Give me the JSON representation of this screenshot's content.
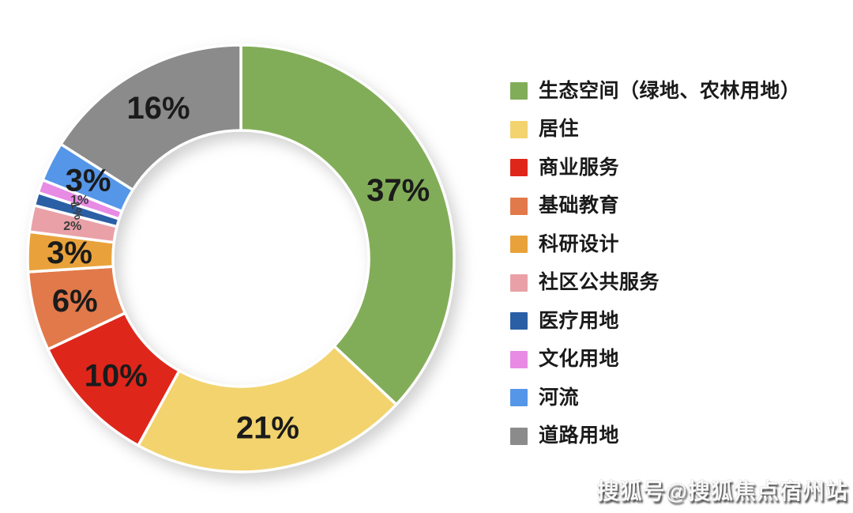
{
  "chart_data": {
    "type": "pie",
    "subtype": "donut",
    "title": "",
    "legend_position": "right",
    "direction": "clockwise",
    "start_angle_deg": 0,
    "donut_inner_ratio": 0.6,
    "series": [
      {
        "label": "生态空间（绿地、农林用地）",
        "value": 37,
        "pct_label": "37%",
        "color": "#82AD58",
        "label_rotate": 0
      },
      {
        "label": "居住",
        "value": 21,
        "pct_label": "21%",
        "color": "#F2D36E",
        "label_rotate": 0
      },
      {
        "label": "商业服务",
        "value": 10,
        "pct_label": "10%",
        "color": "#DF261A",
        "label_rotate": 0
      },
      {
        "label": "基础教育",
        "value": 6,
        "pct_label": "6%",
        "color": "#E2794A",
        "label_rotate": 0
      },
      {
        "label": "科研设计",
        "value": 3,
        "pct_label": "3%",
        "color": "#E9A23B",
        "label_rotate": 0
      },
      {
        "label": "社区公共服务",
        "value": 2,
        "pct_label": "2%",
        "color": "#E9A1A7",
        "label_rotate": 0
      },
      {
        "label": "医疗用地",
        "value": 1,
        "pct_label": "1%",
        "color": "#2B5FA5",
        "label_rotate": 75
      },
      {
        "label": "文化用地",
        "value": 1,
        "pct_label": "1%",
        "color": "#E78BE4",
        "label_rotate": 0
      },
      {
        "label": "河流",
        "value": 3,
        "pct_label": "3%",
        "color": "#5596E8",
        "label_rotate": 0
      },
      {
        "label": "道路用地",
        "value": 16,
        "pct_label": "16%",
        "color": "#8B8B8B",
        "label_rotate": 0
      }
    ]
  },
  "watermark": {
    "text": "搜狐号@搜狐焦点宿州站"
  }
}
